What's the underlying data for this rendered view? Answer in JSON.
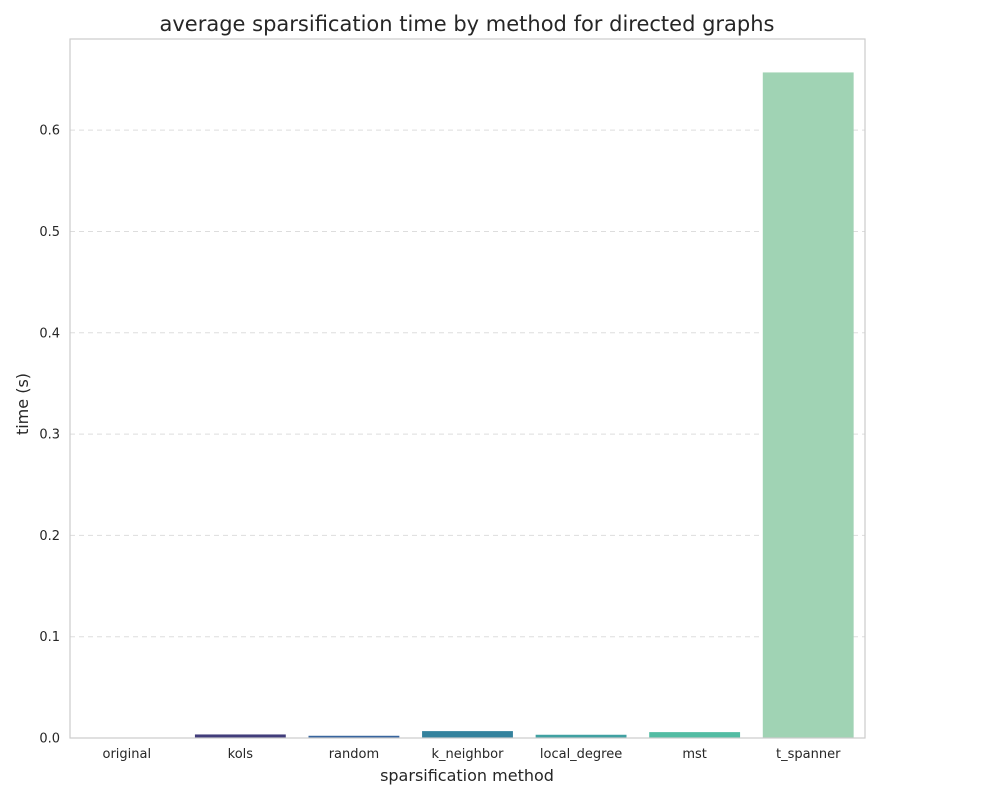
{
  "chart_data": {
    "type": "bar",
    "title": "average sparsification time by method for directed graphs",
    "xlabel": "sparsification method",
    "ylabel": "time (s)",
    "categories": [
      "original",
      "kols",
      "random",
      "k_neighbor",
      "local_degree",
      "mst",
      "t_spanner"
    ],
    "values": [
      0.0,
      0.0035,
      0.0022,
      0.0068,
      0.0032,
      0.0058,
      0.657
    ],
    "colors": [
      "#2e1e3b",
      "#413d7b",
      "#37659e",
      "#34829d",
      "#40a1a2",
      "#52bca3",
      "#a0d3b4"
    ],
    "ylim": [
      0,
      0.69
    ],
    "yticks": [
      "0.0",
      "0.1",
      "0.2",
      "0.3",
      "0.4",
      "0.5",
      "0.6"
    ],
    "grid": "y",
    "legend": "none"
  }
}
